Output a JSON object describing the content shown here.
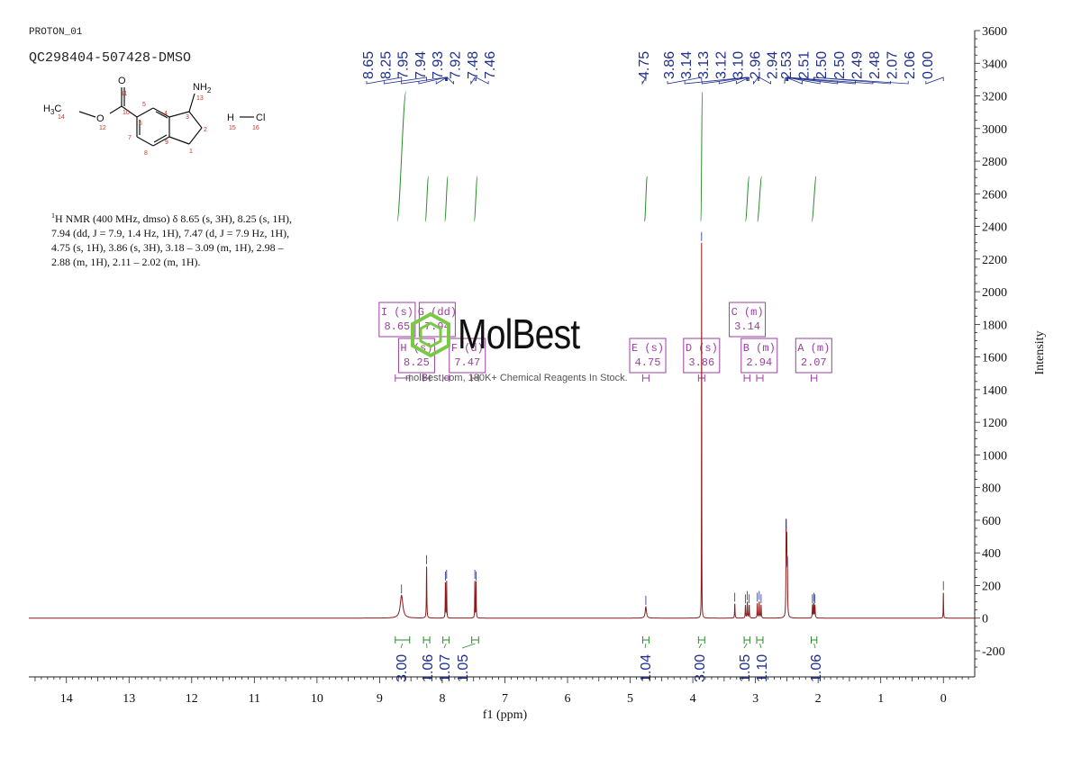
{
  "header": {
    "experiment": "PROTON_01",
    "sample": "QC298404-507428-DMSO"
  },
  "molecule": {
    "atoms": {
      "h3c": "H",
      "h3c_sub": "3",
      "h3c_c": "C",
      "o_ether": "O",
      "o_carbonyl": "O",
      "nh": "NH",
      "nh_sub": "2",
      "h": "H",
      "cl": "Cl"
    },
    "atom_numbers": [
      "14",
      "12",
      "10",
      "11",
      "6",
      "5",
      "4",
      "3",
      "13",
      "2",
      "1",
      "9",
      "8",
      "7",
      "15",
      "16"
    ]
  },
  "nmr_description": {
    "sup": "1",
    "text": "H NMR (400 MHz, dmso) δ 8.65 (s, 3H), 8.25 (s, 1H), 7.94 (dd, J = 7.9, 1.4 Hz, 1H), 7.47 (d, J = 7.9 Hz, 1H), 4.75 (s, 1H), 3.86 (s, 3H), 3.18 – 3.09 (m, 1H), 2.98 – 2.88 (m, 1H), 2.11 – 2.02 (m, 1H)."
  },
  "watermark": {
    "brand": "MolBest",
    "tagline": "molBest.com, 180K+ Chemical Reagents In Stock."
  },
  "chart_data": {
    "type": "line",
    "xlabel": "f1 (ppm)",
    "ylabel": "Intensity",
    "xlim": [
      14.6,
      -0.5
    ],
    "ylim": [
      -360,
      3600
    ],
    "x_ticks": [
      "14",
      "13",
      "12",
      "11",
      "10",
      "9",
      "8",
      "7",
      "6",
      "5",
      "4",
      "3",
      "2",
      "1",
      "0"
    ],
    "y_ticks": [
      "-200",
      "0",
      "200",
      "400",
      "600",
      "800",
      "1000",
      "1200",
      "1400",
      "1600",
      "1800",
      "2000",
      "2200",
      "2400",
      "2600",
      "2800",
      "3000",
      "3200",
      "3400",
      "3600"
    ],
    "peak_labels": [
      "8.65",
      "8.25",
      "7.95",
      "7.94",
      "7.93",
      "7.92",
      "7.48",
      "7.46",
      "4.75",
      "3.86",
      "3.14",
      "3.13",
      "3.12",
      "3.10",
      "2.96",
      "2.94",
      "2.53",
      "2.51",
      "2.50",
      "2.50",
      "2.49",
      "2.48",
      "2.07",
      "2.06",
      "0.00"
    ],
    "peaks": [
      {
        "ppm": 8.65,
        "height": 140,
        "width": 0.025
      },
      {
        "ppm": 8.25,
        "height": 320,
        "width": 0.004
      },
      {
        "ppm": 7.95,
        "height": 220,
        "width": 0.003
      },
      {
        "ppm": 7.93,
        "height": 230,
        "width": 0.003
      },
      {
        "ppm": 7.48,
        "height": 230,
        "width": 0.003
      },
      {
        "ppm": 7.46,
        "height": 220,
        "width": 0.003
      },
      {
        "ppm": 4.75,
        "height": 70,
        "width": 0.012
      },
      {
        "ppm": 3.86,
        "height": 2300,
        "width": 0.002
      },
      {
        "ppm": 3.33,
        "height": 90,
        "width": 0.004
      },
      {
        "ppm": 3.16,
        "height": 80,
        "width": 0.004
      },
      {
        "ppm": 3.13,
        "height": 100,
        "width": 0.004
      },
      {
        "ppm": 3.1,
        "height": 80,
        "width": 0.004
      },
      {
        "ppm": 2.97,
        "height": 90,
        "width": 0.004
      },
      {
        "ppm": 2.94,
        "height": 100,
        "width": 0.004
      },
      {
        "ppm": 2.91,
        "height": 80,
        "width": 0.004
      },
      {
        "ppm": 2.51,
        "height": 540,
        "width": 0.004
      },
      {
        "ppm": 2.5,
        "height": 420,
        "width": 0.004
      },
      {
        "ppm": 2.49,
        "height": 300,
        "width": 0.004
      },
      {
        "ppm": 2.09,
        "height": 80,
        "width": 0.004
      },
      {
        "ppm": 2.07,
        "height": 90,
        "width": 0.004
      },
      {
        "ppm": 2.05,
        "height": 80,
        "width": 0.004
      },
      {
        "ppm": 0.0,
        "height": 160,
        "width": 0.003
      }
    ],
    "multiplets": [
      {
        "letter": "I",
        "mult": "s",
        "shift": "8.65",
        "box_ppm": 8.72,
        "row": 1
      },
      {
        "letter": "G",
        "mult": "dd",
        "shift": "7.94",
        "box_ppm": 8.08,
        "row": 1
      },
      {
        "letter": "H",
        "mult": "s",
        "shift": "8.25",
        "box_ppm": 8.41,
        "row": 2
      },
      {
        "letter": "F",
        "mult": "d",
        "shift": "7.47",
        "box_ppm": 7.6,
        "row": 2
      },
      {
        "letter": "E",
        "mult": "s",
        "shift": "4.75",
        "box_ppm": 4.72,
        "row": 2
      },
      {
        "letter": "D",
        "mult": "s",
        "shift": "3.86",
        "box_ppm": 3.86,
        "row": 2
      },
      {
        "letter": "C",
        "mult": "m",
        "shift": "3.14",
        "box_ppm": 3.13,
        "row": 1
      },
      {
        "letter": "B",
        "mult": "m",
        "shift": "2.94",
        "box_ppm": 2.94,
        "row": 2
      },
      {
        "letter": "A",
        "mult": "m",
        "shift": "2.07",
        "box_ppm": 2.07,
        "row": 2
      }
    ],
    "integrals": [
      {
        "value": "3.00",
        "from": 8.75,
        "to": 8.52
      },
      {
        "value": "1.06",
        "from": 8.3,
        "to": 8.2
      },
      {
        "value": "1.07",
        "from": 7.99,
        "to": 7.89
      },
      {
        "value": "1.05",
        "from": 7.53,
        "to": 7.42
      },
      {
        "value": "1.04",
        "from": 4.8,
        "to": 4.7
      },
      {
        "value": "3.00",
        "from": 3.91,
        "to": 3.81
      },
      {
        "value": "1.05",
        "from": 3.18,
        "to": 3.09
      },
      {
        "value": "1.10",
        "from": 2.98,
        "to": 2.88
      },
      {
        "value": "1.06",
        "from": 2.11,
        "to": 2.02
      }
    ],
    "colors": {
      "spectrum": "#8b1a1a",
      "peak_labels": "#1f2f8f",
      "integral": "#2a8a2a",
      "multiplet_box": "#9b3fa0",
      "watermark": "#7ac943"
    }
  }
}
